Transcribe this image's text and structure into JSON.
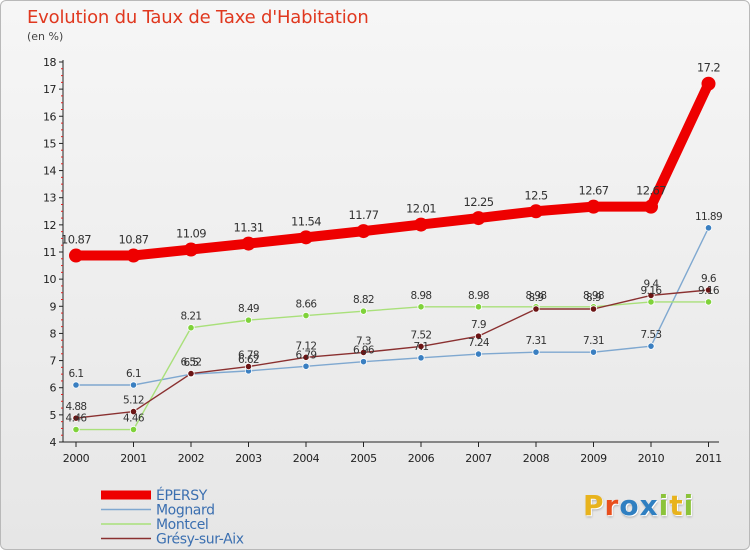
{
  "title": "Evolution du Taux de Taxe d'Habitation",
  "subtitle": "(en %)",
  "logo_text": "Proxiti",
  "logo_colors": [
    "#e8b31d",
    "#e84f1d",
    "#2f7fc1",
    "#2f7fc1",
    "#8bc33a",
    "#e8b31d",
    "#8bc33a"
  ],
  "chart_data": {
    "type": "line",
    "title": "Evolution du Taux de Taxe d'Habitation",
    "ylabel": "(en %)",
    "xlabel": "",
    "x": [
      "2000",
      "2001",
      "2002",
      "2003",
      "2004",
      "2005",
      "2006",
      "2007",
      "2008",
      "2009",
      "2010",
      "2011"
    ],
    "ylim": [
      4,
      18
    ],
    "yticks": [
      4,
      5,
      6,
      7,
      8,
      9,
      10,
      11,
      12,
      13,
      14,
      15,
      16,
      17,
      18
    ],
    "grid": false,
    "legend_position": "bottom-left",
    "series": [
      {
        "name": "ÉPERSY",
        "color": "#ee0000",
        "marker": "#ee0000",
        "values": [
          10.87,
          10.87,
          11.09,
          11.31,
          11.54,
          11.77,
          12.01,
          12.25,
          12.5,
          12.67,
          12.67,
          17.2
        ],
        "labels": [
          "10.87",
          "10.87",
          "11.09",
          "11.31",
          "11.54",
          "11.77",
          "12.01",
          "12.25",
          "12.5",
          "12.67",
          "12.67",
          "17.2"
        ]
      },
      {
        "name": "Mognard",
        "color": "#7fa8d0",
        "marker": "#3a7fc1",
        "values": [
          6.1,
          6.1,
          6.5,
          6.62,
          6.79,
          6.96,
          7.1,
          7.24,
          7.31,
          7.31,
          7.53,
          11.89
        ],
        "labels": [
          "6.1",
          "6.1",
          "6.5",
          "6.62",
          "6.79",
          "6.96",
          "7.1",
          "7.24",
          "7.31",
          "7.31",
          "7.53",
          "11.89"
        ]
      },
      {
        "name": "Montcel",
        "color": "#a9e07a",
        "marker": "#7fd23a",
        "values": [
          4.46,
          4.46,
          8.21,
          8.49,
          8.66,
          8.82,
          8.98,
          8.98,
          8.98,
          8.98,
          9.16,
          9.16
        ],
        "labels": [
          "4.46",
          "4.46",
          "8.21",
          "8.49",
          "8.66",
          "8.82",
          "8.98",
          "8.98",
          "8.98",
          "8.98",
          "9.16",
          "9.16"
        ]
      },
      {
        "name": "Grésy-sur-Aix",
        "color": "#8a3030",
        "marker": "#6b1414",
        "values": [
          4.88,
          5.12,
          6.52,
          6.78,
          7.12,
          7.3,
          7.52,
          7.9,
          8.9,
          8.9,
          9.4,
          9.6
        ],
        "labels": [
          "4.88",
          "5.12",
          "6.52",
          "6.78",
          "7.12",
          "7.3",
          "7.52",
          "7.9",
          "8.9",
          "8.9",
          "9.4",
          "9.6"
        ]
      }
    ]
  }
}
